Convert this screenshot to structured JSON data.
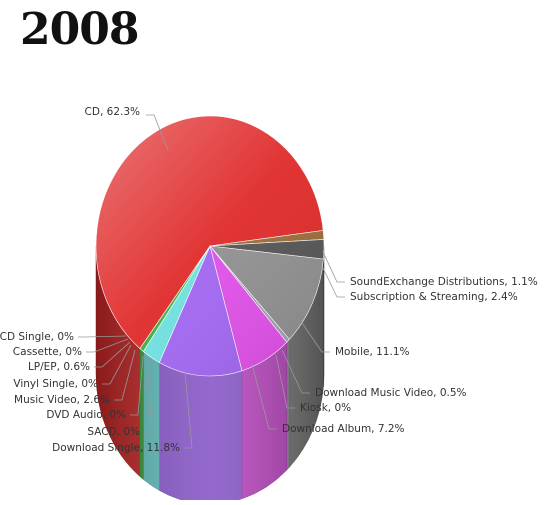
{
  "chart_data": {
    "type": "pie",
    "title": "2008",
    "slices": [
      {
        "label": "CD",
        "value": 62.3,
        "color": "#e02a2a",
        "display": "CD, 62.3%"
      },
      {
        "label": "SoundExchange Distributions",
        "value": 1.1,
        "color": "#9c6b3a",
        "display": "SoundExchange Distributions, 1.1%"
      },
      {
        "label": "Subscription & Streaming",
        "value": 2.4,
        "color": "#555555",
        "display": "Subscription & Streaming, 2.4%"
      },
      {
        "label": "Mobile",
        "value": 11.1,
        "color": "#909090",
        "display": "Mobile, 11.1%"
      },
      {
        "label": "Download Music Video",
        "value": 0.5,
        "color": "#a0a0b0",
        "display": "Download Music Video, 0.5%"
      },
      {
        "label": "Kiosk",
        "value": 0,
        "color": "#c040c0",
        "display": "Kiosk, 0%"
      },
      {
        "label": "Download Album",
        "value": 7.2,
        "color": "#e050e8",
        "display": "Download Album, 7.2%"
      },
      {
        "label": "Download Single",
        "value": 11.8,
        "color": "#a266f2",
        "display": "Download Single, 11.8%"
      },
      {
        "label": "SACD",
        "value": 0,
        "color": "#6aa6ff",
        "display": "SACD, 0%"
      },
      {
        "label": "DVD Audio",
        "value": 0,
        "color": "#6ad0ff",
        "display": "DVD Audio, 0%"
      },
      {
        "label": "Music Video",
        "value": 2.6,
        "color": "#70e0e0",
        "display": "Music Video, 2.6%"
      },
      {
        "label": "Vinyl Single",
        "value": 0,
        "color": "#2f8a2f",
        "display": "Vinyl Single, 0%"
      },
      {
        "label": "LP/EP",
        "value": 0.6,
        "color": "#40b040",
        "display": "LP/EP, 0.6%"
      },
      {
        "label": "Cassette",
        "value": 0,
        "color": "#90c030",
        "display": "Cassette, 0%"
      },
      {
        "label": "CD Single",
        "value": 0,
        "color": "#b0d040",
        "display": "CD Single, 0%"
      }
    ]
  }
}
